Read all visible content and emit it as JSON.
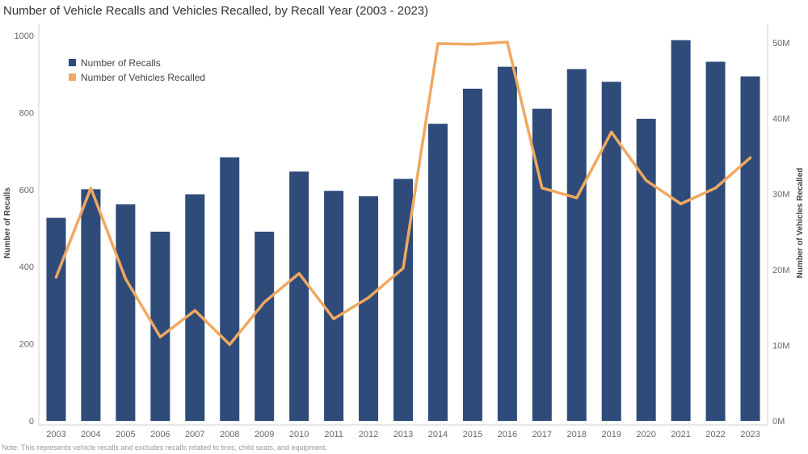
{
  "chart_data": {
    "type": "bar",
    "title": "Number of Vehicle Recalls and Vehicles Recalled, by Recall Year (2003 - 2023)",
    "note": "Note: This represents vehicle recalls and excludes recalls related to tires, child seats, and equipment.",
    "categories": [
      "2003",
      "2004",
      "2005",
      "2006",
      "2007",
      "2008",
      "2009",
      "2010",
      "2011",
      "2012",
      "2013",
      "2014",
      "2015",
      "2016",
      "2017",
      "2018",
      "2019",
      "2020",
      "2021",
      "2022",
      "2023"
    ],
    "series": [
      {
        "name": "Number of Recalls",
        "type": "bar",
        "axis": "left",
        "color": "#2e4b7a",
        "values": [
          527,
          601,
          562,
          491,
          588,
          684,
          491,
          647,
          597,
          583,
          628,
          771,
          862,
          919,
          810,
          913,
          880,
          784,
          988,
          932,
          894
        ]
      },
      {
        "name": "Number of Vehicles Recalled",
        "type": "line",
        "axis": "right",
        "color": "#f0a860",
        "values": [
          19.0,
          30.8,
          18.8,
          11.1,
          14.6,
          10.1,
          15.7,
          19.5,
          13.5,
          16.3,
          20.2,
          49.9,
          49.8,
          50.1,
          30.8,
          29.5,
          38.2,
          31.8,
          28.7,
          30.8,
          34.8
        ]
      }
    ],
    "ylabel": "Number of Recalls",
    "ylim": [
      0,
      1000
    ],
    "yticks": [
      "0",
      "200",
      "400",
      "600",
      "800",
      "1000"
    ],
    "y2label": "Number of Vehicles Recalled",
    "y2lim": [
      0,
      50
    ],
    "y2ticks": [
      "0M",
      "10M",
      "20M",
      "30M",
      "40M",
      "50M"
    ],
    "legend_position": "top-left"
  }
}
